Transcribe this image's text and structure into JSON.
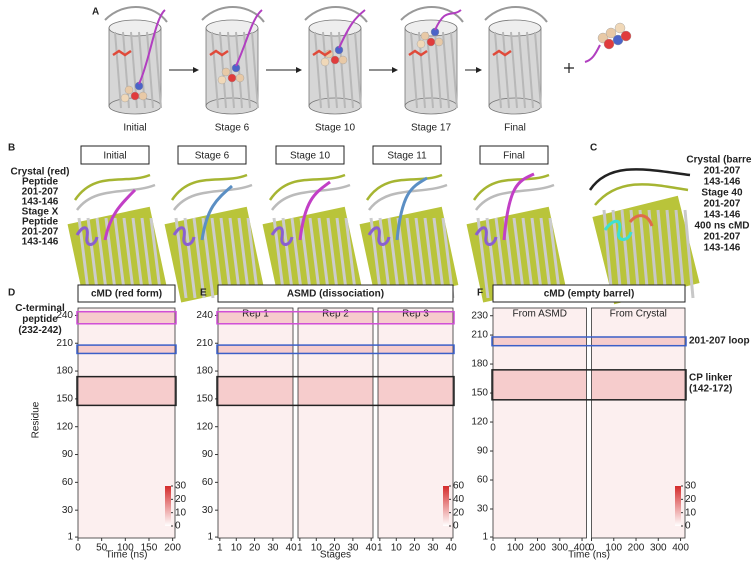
{
  "panel_a": {
    "label": "A",
    "stages": [
      "Initial",
      "Stage 6",
      "Stage 10",
      "Stage 17",
      "Final"
    ]
  },
  "panel_b": {
    "label": "B",
    "stages": [
      "Initial",
      "Stage 6",
      "Stage 10",
      "Stage 11",
      "Final"
    ],
    "legend": [
      {
        "text": "Crystal (red)",
        "color": "#a8a8a8"
      },
      {
        "text": "Peptide",
        "color": "#c23fc6"
      },
      {
        "text": "201-207",
        "color": "#c23fc6"
      },
      {
        "text": "143-146",
        "color": "#c23fc6"
      },
      {
        "text": "Stage X",
        "color": "#c9cc1f"
      },
      {
        "text": "Peptide",
        "color": "#5b8fc4"
      },
      {
        "text": "201-207",
        "color": "#5b9db0"
      },
      {
        "text": "143-146",
        "color": "#5b9db0"
      }
    ]
  },
  "panel_c": {
    "label": "C",
    "legend": [
      {
        "text": "Crystal (barrel)",
        "color": "#a8a8a8"
      },
      {
        "text": "201-207",
        "color": "#e06a4c"
      },
      {
        "text": "143-146",
        "color": "#e06a4c"
      },
      {
        "text": "Stage 40",
        "color": "#c9cc1f"
      },
      {
        "text": "201-207",
        "color": "#6aa0b3"
      },
      {
        "text": "143-146",
        "color": "#6aa0b3"
      },
      {
        "text": "400 ns cMD",
        "color": "#222222"
      },
      {
        "text": "201-207",
        "color": "#3fe0d0"
      },
      {
        "text": "143-146",
        "color": "#3fe0d0"
      }
    ]
  },
  "chart_data": [
    {
      "type": "heatmap",
      "label": "D",
      "title": "cMD (red form)",
      "xlabel": "Time (ns)",
      "ylabel": "Residue",
      "xlim": [
        0,
        205
      ],
      "xticks": [
        0,
        50,
        100,
        150,
        200
      ],
      "ylim": [
        0,
        248
      ],
      "yticks": [
        1,
        30,
        60,
        90,
        120,
        150,
        180,
        210,
        240
      ],
      "colorbar": {
        "lim": [
          0,
          30
        ],
        "ticks": [
          0,
          10,
          20,
          30
        ]
      },
      "highlights": [
        {
          "residues": [
            231,
            244
          ],
          "color": "#d04fd6"
        },
        {
          "residues": [
            199,
            208
          ],
          "color": "#3b5fc8"
        },
        {
          "residues": [
            143,
            174
          ],
          "color": "#222222"
        }
      ],
      "annotations": [
        {
          "lines": [
            "C-terminal",
            "peptide",
            "(232-242)"
          ],
          "color": "#d04fd6",
          "side": "left",
          "residue": 236
        }
      ]
    },
    {
      "type": "heatmap",
      "label": "E",
      "title": "ASMD (dissociation)",
      "xlabel": "Stages",
      "subplots": [
        "Rep 1",
        "Rep 2",
        "Rep 3"
      ],
      "xlim": [
        0,
        41
      ],
      "xticks": [
        1,
        10,
        20,
        30,
        40
      ],
      "ylim": [
        0,
        248
      ],
      "yticks": [
        1,
        30,
        60,
        90,
        120,
        150,
        180,
        210,
        240
      ],
      "colorbar": {
        "lim": [
          0,
          60
        ],
        "ticks": [
          0,
          20,
          40,
          60
        ]
      },
      "highlights": [
        {
          "residues": [
            231,
            244
          ],
          "color": "#d04fd6"
        },
        {
          "residues": [
            199,
            208
          ],
          "color": "#3b5fc8"
        },
        {
          "residues": [
            143,
            174
          ],
          "color": "#222222"
        }
      ]
    },
    {
      "type": "heatmap",
      "label": "F",
      "title": "cMD (empty barrel)",
      "xlabel": "Time (ns)",
      "subplots": [
        "From ASMD",
        "From Crystal"
      ],
      "xlim": [
        0,
        420
      ],
      "xticks": [
        0,
        100,
        200,
        300,
        400
      ],
      "ylim": [
        0,
        238
      ],
      "yticks": [
        1,
        30,
        60,
        90,
        120,
        150,
        180,
        210,
        230
      ],
      "colorbar": {
        "lim": [
          0,
          30
        ],
        "ticks": [
          0,
          10,
          20,
          30
        ]
      },
      "highlights": [
        {
          "residues": [
            199,
            208
          ],
          "color": "#3b5fc8"
        },
        {
          "residues": [
            143,
            174
          ],
          "color": "#222222"
        }
      ],
      "annotations": [
        {
          "lines": [
            "201-207 loop"
          ],
          "color": "#3b5fc8",
          "side": "right",
          "residue": 204
        },
        {
          "lines": [
            "CP linker",
            "(142-172)"
          ],
          "color": "#222222",
          "side": "right",
          "residue": 160
        }
      ]
    }
  ]
}
